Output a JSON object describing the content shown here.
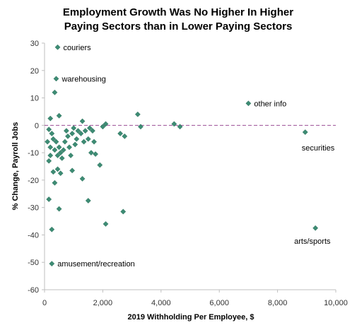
{
  "chart_data": {
    "type": "scatter",
    "title_lines": [
      "Employment Growth Was No Higher In Higher",
      "Paying Sectors than in Lower Paying Sectors"
    ],
    "xlabel": "2019 Withholding  Per Employee, $",
    "ylabel": "% Change, Payroll Jobs",
    "xlim": [
      0,
      10000
    ],
    "ylim": [
      -60,
      30
    ],
    "x_ticks": [
      0,
      2000,
      4000,
      6000,
      8000,
      10000
    ],
    "x_tick_labels": [
      "0",
      "2,000",
      "4,000",
      "6,000",
      "8,000",
      "10,000"
    ],
    "y_ticks": [
      30,
      20,
      10,
      0,
      -10,
      -20,
      -30,
      -40,
      -50,
      -60
    ],
    "y_tick_labels": [
      "30",
      "20",
      "10",
      "0",
      "-10",
      "-20",
      "-30",
      "-40",
      "-50",
      "-60"
    ],
    "reference_line": {
      "y": 0,
      "style": "dashed",
      "color": "#9b4f96"
    },
    "marker_color": "#3d8c74",
    "points": [
      {
        "x": 450,
        "y": 28.5
      },
      {
        "x": 400,
        "y": 17
      },
      {
        "x": 350,
        "y": 12
      },
      {
        "x": 200,
        "y": 2.5
      },
      {
        "x": 500,
        "y": 3.5
      },
      {
        "x": 150,
        "y": -1.5
      },
      {
        "x": 250,
        "y": -3
      },
      {
        "x": 300,
        "y": -5
      },
      {
        "x": 400,
        "y": -6
      },
      {
        "x": 100,
        "y": -6
      },
      {
        "x": 200,
        "y": -8
      },
      {
        "x": 350,
        "y": -9
      },
      {
        "x": 450,
        "y": -11
      },
      {
        "x": 500,
        "y": -8
      },
      {
        "x": 550,
        "y": -10
      },
      {
        "x": 600,
        "y": -12
      },
      {
        "x": 650,
        "y": -9
      },
      {
        "x": 700,
        "y": -6
      },
      {
        "x": 750,
        "y": -2
      },
      {
        "x": 800,
        "y": -4
      },
      {
        "x": 850,
        "y": -8
      },
      {
        "x": 900,
        "y": -11
      },
      {
        "x": 950,
        "y": -3
      },
      {
        "x": 1000,
        "y": -1
      },
      {
        "x": 1050,
        "y": -7
      },
      {
        "x": 1100,
        "y": -5
      },
      {
        "x": 1150,
        "y": -2
      },
      {
        "x": 1250,
        "y": -3
      },
      {
        "x": 1300,
        "y": 1.5
      },
      {
        "x": 1350,
        "y": -6
      },
      {
        "x": 1400,
        "y": -2
      },
      {
        "x": 1500,
        "y": -5
      },
      {
        "x": 1550,
        "y": -1
      },
      {
        "x": 1600,
        "y": -10
      },
      {
        "x": 1650,
        "y": -2
      },
      {
        "x": 1700,
        "y": -6
      },
      {
        "x": 1750,
        "y": -10.5
      },
      {
        "x": 2000,
        "y": -0.5
      },
      {
        "x": 2100,
        "y": 0.5
      },
      {
        "x": 1300,
        "y": -19.5
      },
      {
        "x": 1900,
        "y": -14.5
      },
      {
        "x": 1500,
        "y": -27.5
      },
      {
        "x": 950,
        "y": -16.5
      },
      {
        "x": 300,
        "y": -17
      },
      {
        "x": 450,
        "y": -16
      },
      {
        "x": 550,
        "y": -17.5
      },
      {
        "x": 350,
        "y": -21
      },
      {
        "x": 200,
        "y": -11
      },
      {
        "x": 150,
        "y": -13
      },
      {
        "x": 150,
        "y": -27
      },
      {
        "x": 500,
        "y": -30.5
      },
      {
        "x": 250,
        "y": -38
      },
      {
        "x": 2100,
        "y": -36
      },
      {
        "x": 2700,
        "y": -31.5
      },
      {
        "x": 2600,
        "y": -3
      },
      {
        "x": 2750,
        "y": -4
      },
      {
        "x": 3200,
        "y": 4
      },
      {
        "x": 3300,
        "y": -0.5
      },
      {
        "x": 4450,
        "y": 0.5
      },
      {
        "x": 4650,
        "y": -0.5
      },
      {
        "x": 7000,
        "y": 8
      },
      {
        "x": 8950,
        "y": -2.5
      },
      {
        "x": 9300,
        "y": -37.5
      },
      {
        "x": 250,
        "y": -50.5
      }
    ],
    "annotations": [
      {
        "text": "couriers",
        "x": 450,
        "y": 28.5
      },
      {
        "text": "warehousing",
        "x": 400,
        "y": 17
      },
      {
        "text": "other info",
        "x": 7000,
        "y": 8
      },
      {
        "text": "securities",
        "x": 8950,
        "y": -2.5
      },
      {
        "text": "arts/sports",
        "x": 9300,
        "y": -37.5
      },
      {
        "text": "amusement/recreation",
        "x": 250,
        "y": -50.5
      }
    ]
  }
}
